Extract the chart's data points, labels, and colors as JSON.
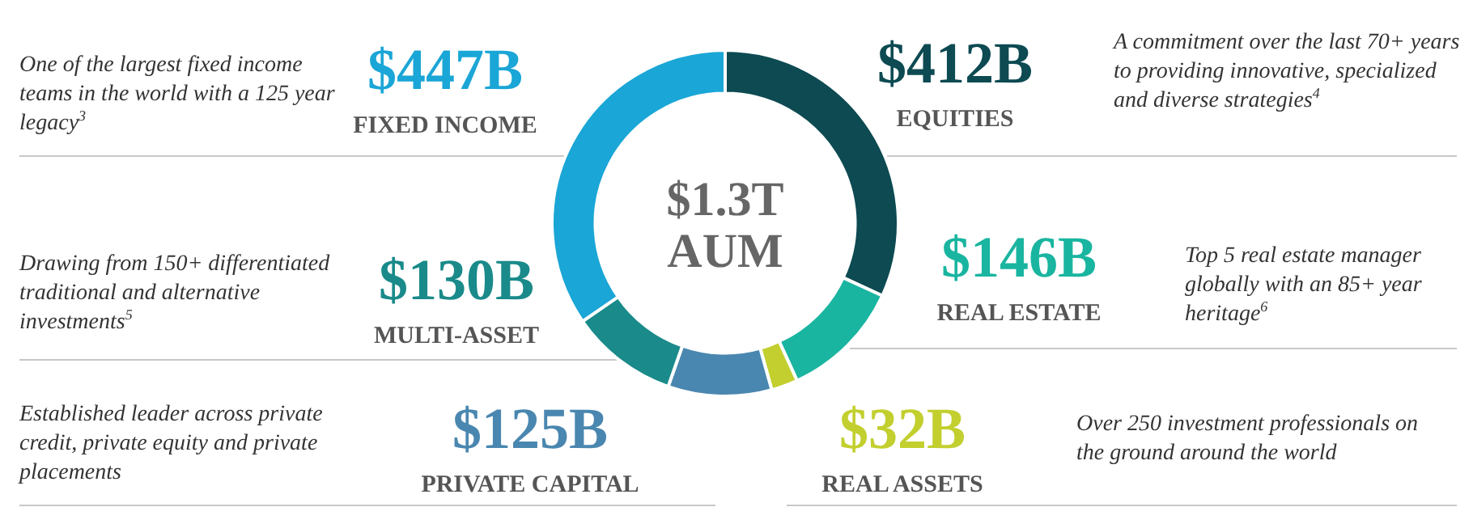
{
  "chart_data": {
    "type": "donut",
    "categories": [
      "EQUITIES",
      "REAL ESTATE",
      "REAL ASSETS",
      "PRIVATE CAPITAL",
      "MULTI-ASSET",
      "FIXED INCOME"
    ],
    "values": [
      412,
      146,
      32,
      125,
      130,
      447
    ],
    "colors": [
      "#0d4a52",
      "#1ab5a0",
      "#c2cf2e",
      "#4a87b0",
      "#1a8a8a",
      "#1aa6d6"
    ],
    "value_labels": [
      "$412B",
      "$146B",
      "$32B",
      "$125B",
      "$130B",
      "$447B"
    ],
    "legend": false,
    "annotations": [
      "$1.3T AUM",
      "A commitment over the last 70+ years to providing innovative, specialized and diverse strategies$^{4}$",
      "Top 5 real estate manager globally with an 85+ year heritage$^{6}$",
      "Over 250 investment professionals on the ground around the world",
      "Established leader across private credit, private equity and private placements",
      "Drawing from 150+ differentiated traditional and alternative investments$^{5}$",
      "One of the largest fixed income teams in the world with a 125 year legacy$^{3}$"
    ]
  }
}
